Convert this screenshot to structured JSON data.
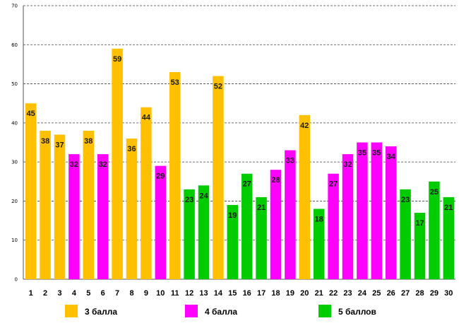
{
  "chart_data": {
    "type": "bar",
    "title": "",
    "xlabel": "",
    "ylabel": "",
    "ylim": [
      0,
      70
    ],
    "yticks": [
      0,
      10,
      20,
      30,
      40,
      50,
      60,
      70
    ],
    "grid": true,
    "legend_position": "bottom",
    "categories": [
      "1",
      "2",
      "3",
      "4",
      "5",
      "6",
      "7",
      "8",
      "9",
      "10",
      "11",
      "12",
      "13",
      "14",
      "15",
      "16",
      "17",
      "18",
      "19",
      "20",
      "21",
      "22",
      "23",
      "24",
      "25",
      "26",
      "27",
      "28",
      "29",
      "30"
    ],
    "values": [
      45,
      38,
      37,
      32,
      38,
      32,
      59,
      36,
      44,
      29,
      53,
      23,
      24,
      52,
      19,
      27,
      21,
      28,
      33,
      42,
      18,
      27,
      32,
      35,
      35,
      34,
      23,
      17,
      25,
      21
    ],
    "groups": [
      "3",
      "3",
      "3",
      "4",
      "3",
      "4",
      "3",
      "3",
      "3",
      "4",
      "3",
      "5",
      "5",
      "3",
      "5",
      "5",
      "5",
      "4",
      "4",
      "3",
      "5",
      "4",
      "4",
      "4",
      "4",
      "4",
      "5",
      "5",
      "5",
      "5"
    ],
    "legend": [
      {
        "key": "3",
        "label": "3 балла",
        "color": "#FFC000"
      },
      {
        "key": "4",
        "label": "4 балла",
        "color": "#FF00FF"
      },
      {
        "key": "5",
        "label": "5 баллов",
        "color": "#00CC00"
      }
    ]
  }
}
